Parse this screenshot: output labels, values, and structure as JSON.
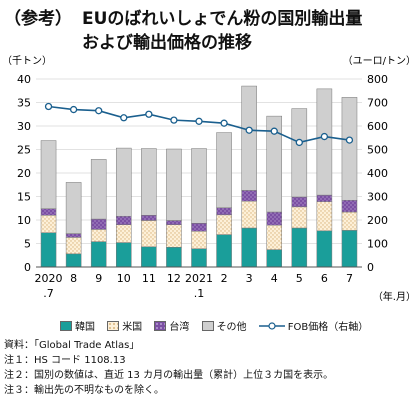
{
  "title": {
    "prefix": "（参考）",
    "line1": "EUのばれいしょでん粉の国別輸出量",
    "line2": "および輸出価格の推移"
  },
  "colors": {
    "korea": "#1a9e9a",
    "us": "#fdf0d8",
    "us_dot": "#d8b27a",
    "taiwan": "#7b4fa3",
    "taiwan_dot": "#c8b4e0",
    "other": "#cfcfcf",
    "line": "#1a5f8e"
  },
  "chart_data": {
    "type": "bar",
    "subtype": "stacked bar with line on secondary axis",
    "categories": [
      "2020\n.7",
      "8",
      "9",
      "10",
      "11",
      "12",
      "2021\n.1",
      "2",
      "3",
      "4",
      "5",
      "6",
      "7"
    ],
    "x_tick_labels": [
      [
        "2020",
        ".7"
      ],
      [
        "8"
      ],
      [
        "9"
      ],
      [
        "10"
      ],
      [
        "11"
      ],
      [
        "12"
      ],
      [
        "2021",
        ".1"
      ],
      [
        "2"
      ],
      [
        "3"
      ],
      [
        "4"
      ],
      [
        "5"
      ],
      [
        "6"
      ],
      [
        "7"
      ]
    ],
    "y_left_label": "（千トン）",
    "y_right_label": "（ユーロ/トン）",
    "x_unit_label": "（年.月）",
    "y_left_lim": [
      0,
      40
    ],
    "y_left_ticks": [
      0,
      5,
      10,
      15,
      20,
      25,
      30,
      35,
      40
    ],
    "y_right_lim": [
      0,
      800
    ],
    "y_right_ticks": [
      0,
      100,
      200,
      300,
      400,
      500,
      600,
      700,
      800
    ],
    "grid": true,
    "series": [
      {
        "name": "韓国",
        "values": [
          7.3,
          2.8,
          5.4,
          5.2,
          4.3,
          4.2,
          3.9,
          6.9,
          8.3,
          3.7,
          8.3,
          7.7,
          7.8
        ]
      },
      {
        "name": "米国",
        "values": [
          3.7,
          3.5,
          2.6,
          3.8,
          5.6,
          4.8,
          3.7,
          4.2,
          5.7,
          5.2,
          4.5,
          6.2,
          3.9
        ]
      },
      {
        "name": "台湾",
        "values": [
          1.4,
          0.8,
          2.2,
          1.8,
          1.1,
          0.9,
          1.7,
          1.5,
          2.3,
          2.8,
          2.1,
          1.4,
          2.5
        ]
      },
      {
        "name": "その他",
        "values": [
          14.5,
          10.9,
          12.7,
          14.5,
          14.2,
          15.2,
          15.9,
          16.0,
          22.2,
          20.4,
          18.8,
          22.6,
          21.9
        ]
      }
    ],
    "line_series": {
      "name": "FOB価格（右軸）",
      "values": [
        683,
        670,
        665,
        635,
        650,
        625,
        620,
        612,
        582,
        578,
        530,
        555,
        540
      ]
    }
  },
  "legend": [
    {
      "label": "韓国",
      "kind": "korea"
    },
    {
      "label": "米国",
      "kind": "us"
    },
    {
      "label": "台湾",
      "kind": "taiwan"
    },
    {
      "label": "その他",
      "kind": "other"
    },
    {
      "label": "FOB価格（右軸）",
      "kind": "line"
    }
  ],
  "notes": [
    "資料：「Global Trade Atlas」",
    "注１：HS コード 1108.13",
    "注２：国別の数値は、直近 13 カ月の輸出量（累計）上位３カ国を表示。",
    "注３：輸出先の不明なものを除く。"
  ]
}
